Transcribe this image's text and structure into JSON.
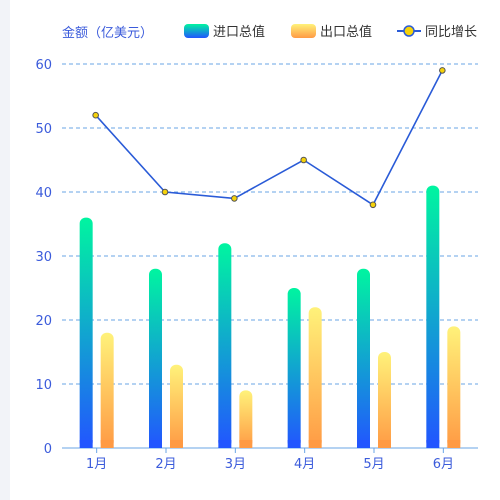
{
  "colors": {
    "import_top": "#00f5a0",
    "import_bottom": "#2255ff",
    "export_top": "#fff27a",
    "export_bottom": "#ff9a44",
    "line": "#2a5bd7",
    "marker": "#f5d20a",
    "grid": "#6aa6e6",
    "axis_text": "#3b5bdb"
  },
  "chart_data": {
    "type": "bar",
    "ylabel": "金额（亿美元）",
    "categories": [
      "1月",
      "2月",
      "3月",
      "4月",
      "5月",
      "6月"
    ],
    "ylim": [
      0,
      60
    ],
    "yticks": [
      0,
      10,
      20,
      30,
      40,
      50,
      60
    ],
    "grid": true,
    "legend_position": "top-right",
    "series": [
      {
        "name": "进口总值",
        "type": "bar",
        "values": [
          36,
          28,
          32,
          25,
          28,
          41
        ]
      },
      {
        "name": "出口总值",
        "type": "bar",
        "values": [
          18,
          13,
          9,
          22,
          15,
          19
        ]
      },
      {
        "name": "同比增长",
        "type": "line",
        "values": [
          52,
          40,
          39,
          45,
          38,
          59
        ]
      }
    ]
  }
}
